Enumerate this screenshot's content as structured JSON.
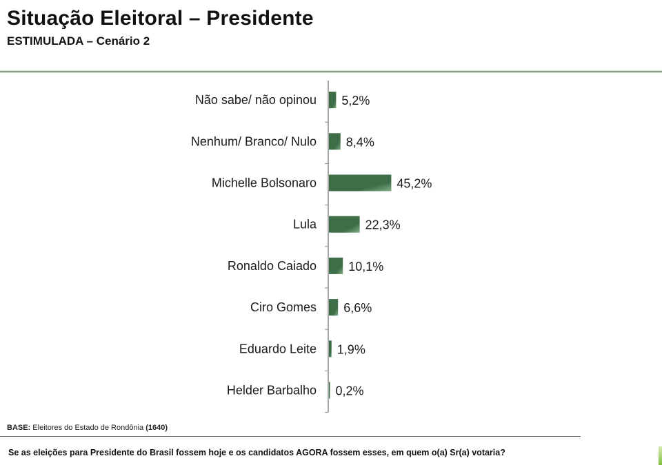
{
  "header": {
    "title": "Situação Eleitoral – Presidente",
    "subtitle": "ESTIMULADA – Cenário 2"
  },
  "footer": {
    "base_label": "BASE:",
    "base_text": "Eleitores do Estado de Rondônia",
    "base_count": "(1640)",
    "question": "Se as eleições para Presidente do Brasil fossem hoje e os candidatos AGORA fossem esses, em quem o(a) Sr(a) votaria?"
  },
  "colors": {
    "bar_dark": "#3e6e48",
    "bar_light": "#7fae86",
    "axis": "#8a8a8a"
  },
  "chart_data": {
    "type": "bar",
    "orientation": "horizontal",
    "title": "Situação Eleitoral – Presidente",
    "subtitle": "ESTIMULADA – Cenário 2",
    "xlabel": "",
    "ylabel": "",
    "unit": "%",
    "xlim": [
      0,
      100
    ],
    "grid": false,
    "legend": "none",
    "categories": [
      "Não sabe/ não opinou",
      "Nenhum/ Branco/ Nulo",
      "Michelle Bolsonaro",
      "Lula",
      "Ronaldo Caiado",
      "Ciro Gomes",
      "Eduardo Leite",
      "Helder Barbalho"
    ],
    "values": [
      5.2,
      8.4,
      45.2,
      22.3,
      10.1,
      6.6,
      1.9,
      0.2
    ],
    "value_labels": [
      "5,2%",
      "8,4%",
      "45,2%",
      "22,3%",
      "10,1%",
      "6,6%",
      "1,9%",
      "0,2%"
    ]
  }
}
